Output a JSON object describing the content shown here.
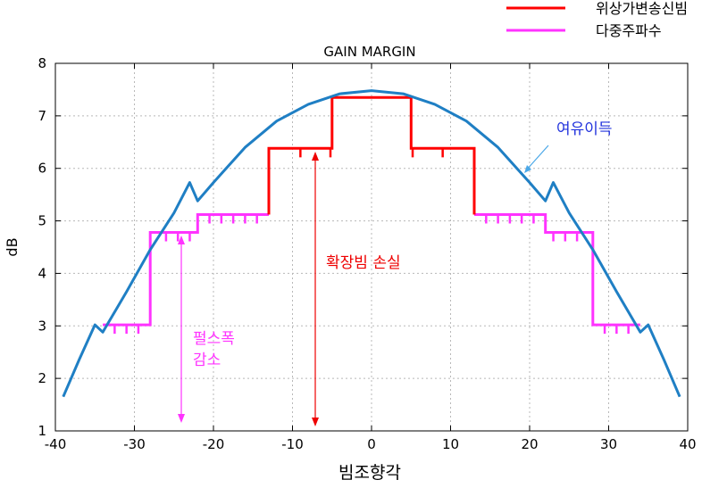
{
  "chart_data": {
    "type": "line",
    "title": "GAIN MARGIN",
    "xlabel": "빔조향각",
    "ylabel": "dB",
    "xlim": [
      -40,
      40
    ],
    "ylim": [
      1,
      8
    ],
    "xticks": [
      -40,
      -30,
      -20,
      -10,
      0,
      10,
      20,
      30,
      40
    ],
    "yticks": [
      1,
      2,
      3,
      4,
      5,
      6,
      7,
      8
    ],
    "grid": true,
    "legend_position": "top-right (outside, above plot)",
    "series": [
      {
        "name": "위상가변송신빔",
        "color": "#ff0000",
        "points": [
          [
            -13,
            5.12
          ],
          [
            -13,
            6.38
          ],
          [
            -5,
            6.38
          ],
          [
            -5,
            7.35
          ],
          [
            5,
            7.35
          ],
          [
            5,
            6.38
          ],
          [
            13,
            6.38
          ],
          [
            13,
            5.12
          ]
        ],
        "ticks": [
          [
            -9,
            6.38
          ],
          [
            -5.2,
            6.38
          ],
          [
            5.2,
            6.38
          ],
          [
            9,
            6.38
          ]
        ]
      },
      {
        "name": "다중주파수",
        "color": "#ff33ff",
        "points": [
          [
            -34,
            3.02
          ],
          [
            -28,
            3.02
          ],
          [
            -28,
            4.78
          ],
          [
            -22,
            4.78
          ],
          [
            -22,
            5.12
          ],
          [
            -13,
            5.12
          ],
          [
            -13,
            5.12
          ]
        ],
        "points_right": [
          [
            13,
            5.12
          ],
          [
            22,
            5.12
          ],
          [
            22,
            4.78
          ],
          [
            28,
            4.78
          ],
          [
            28,
            3.02
          ],
          [
            34,
            3.02
          ]
        ],
        "ticks": [
          [
            -32.5,
            3.02
          ],
          [
            -31,
            3.02
          ],
          [
            -29.5,
            3.02
          ],
          [
            -26,
            4.78
          ],
          [
            -24.5,
            4.78
          ],
          [
            -23,
            4.78
          ],
          [
            -20.5,
            5.12
          ],
          [
            -19,
            5.12
          ],
          [
            -17.5,
            5.12
          ],
          [
            -16,
            5.12
          ],
          [
            -14.5,
            5.12
          ],
          [
            14.5,
            5.12
          ],
          [
            16,
            5.12
          ],
          [
            17.5,
            5.12
          ],
          [
            19,
            5.12
          ],
          [
            20.5,
            5.12
          ],
          [
            23,
            4.78
          ],
          [
            24.5,
            4.78
          ],
          [
            26,
            4.78
          ],
          [
            29.5,
            3.02
          ],
          [
            31,
            3.02
          ],
          [
            32.5,
            3.02
          ]
        ]
      },
      {
        "name": "gain curve",
        "color": "#1f7fc4",
        "points": [
          [
            -39,
            1.65
          ],
          [
            -37,
            2.35
          ],
          [
            -35,
            3.02
          ],
          [
            -34,
            2.88
          ],
          [
            -31,
            3.65
          ],
          [
            -28,
            4.45
          ],
          [
            -25,
            5.15
          ],
          [
            -23,
            5.73
          ],
          [
            -22,
            5.38
          ],
          [
            -20,
            5.73
          ],
          [
            -16,
            6.4
          ],
          [
            -12,
            6.9
          ],
          [
            -8,
            7.22
          ],
          [
            -4,
            7.42
          ],
          [
            0,
            7.48
          ],
          [
            4,
            7.42
          ],
          [
            8,
            7.22
          ],
          [
            12,
            6.9
          ],
          [
            16,
            6.4
          ],
          [
            20,
            5.73
          ],
          [
            22,
            5.38
          ],
          [
            23,
            5.73
          ],
          [
            25,
            5.15
          ],
          [
            28,
            4.45
          ],
          [
            31,
            3.65
          ],
          [
            34,
            2.88
          ],
          [
            35,
            3.02
          ],
          [
            37,
            2.35
          ],
          [
            39,
            1.65
          ]
        ]
      }
    ],
    "annotations": {
      "margin": {
        "text": "여유이득",
        "color": "#2233dd"
      },
      "expand_loss": {
        "text": "확장빔 손실",
        "color": "#ee0000"
      },
      "pulse_line1": {
        "text": "펄스폭",
        "color": "#ff33ff"
      },
      "pulse_line2": {
        "text": "감소",
        "color": "#ff33ff"
      }
    }
  }
}
